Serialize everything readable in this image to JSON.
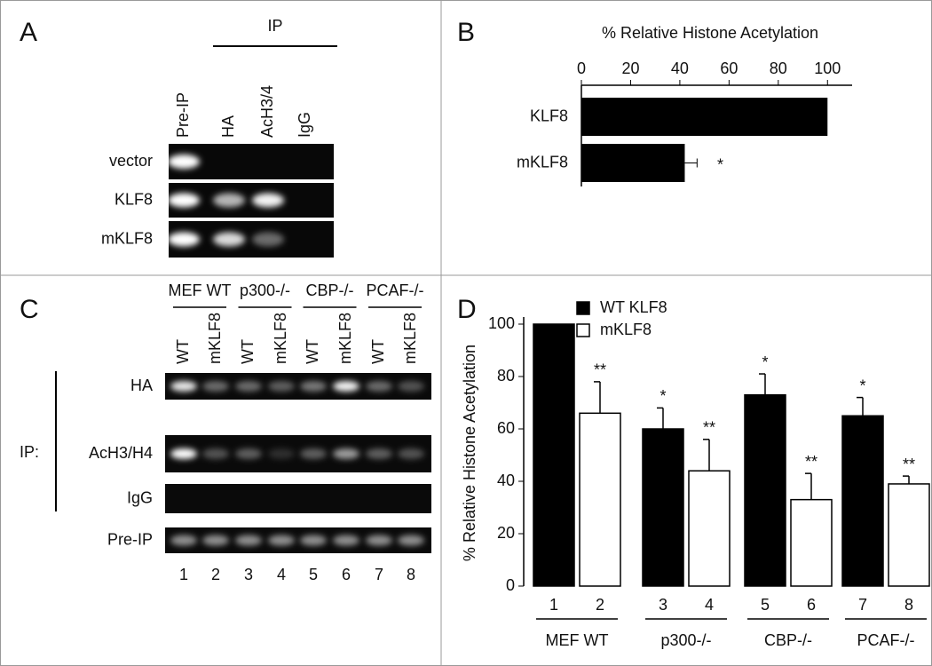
{
  "panel_labels": [
    "A",
    "B",
    "C",
    "D"
  ],
  "gel_a": {
    "header": "IP",
    "lanes": [
      "Pre-IP",
      "HA",
      "AcH3/4",
      "IgG"
    ],
    "rows": [
      "vector",
      "KLF8",
      "mKLF8"
    ]
  },
  "gel_c": {
    "groups": [
      "MEF WT",
      "p300-/-",
      "CBP-/-",
      "PCAF-/-"
    ],
    "lanes": [
      "WT",
      "mKLF8",
      "WT",
      "mKLF8",
      "WT",
      "mKLF8",
      "WT",
      "mKLF8"
    ],
    "ip_label": "IP:",
    "rows": [
      "HA",
      "AcH3/H4",
      "IgG",
      "Pre-IP"
    ],
    "lane_numbers": [
      "1",
      "2",
      "3",
      "4",
      "5",
      "6",
      "7",
      "8"
    ]
  },
  "chart_data": [
    {
      "type": "hbar",
      "title": "% Relative Histone Acetylation",
      "categories": [
        "KLF8",
        "mKLF8"
      ],
      "values": [
        100,
        42
      ],
      "errors": [
        null,
        5
      ],
      "significance": [
        null,
        "*"
      ],
      "color": "#000000",
      "xlim": [
        0,
        110
      ],
      "xticks": [
        0,
        20,
        40,
        60,
        80,
        100
      ]
    },
    {
      "type": "grouped_bar",
      "y_label": "% Relative Histone Acetylation",
      "categories": [
        "MEF WT",
        "p300-/-",
        "CBP-/-",
        "PCAF-/-"
      ],
      "series": [
        {
          "name": "WT KLF8",
          "color": "#000000",
          "values": [
            100,
            60,
            73,
            65
          ],
          "errors": [
            null,
            8,
            8,
            7
          ],
          "significance": [
            null,
            "*",
            "*",
            "*"
          ],
          "lane_labels": [
            "1",
            "3",
            "5",
            "7"
          ]
        },
        {
          "name": "mKLF8",
          "color": "#ffffff",
          "values": [
            66,
            44,
            33,
            39
          ],
          "errors": [
            12,
            12,
            10,
            3
          ],
          "significance": [
            "**",
            "**",
            "**",
            "**"
          ],
          "lane_labels": [
            "2",
            "4",
            "6",
            "8"
          ]
        }
      ],
      "ylim": [
        0,
        100
      ],
      "yticks": [
        0,
        20,
        40,
        60,
        80,
        100
      ],
      "legend": "top-left"
    }
  ]
}
